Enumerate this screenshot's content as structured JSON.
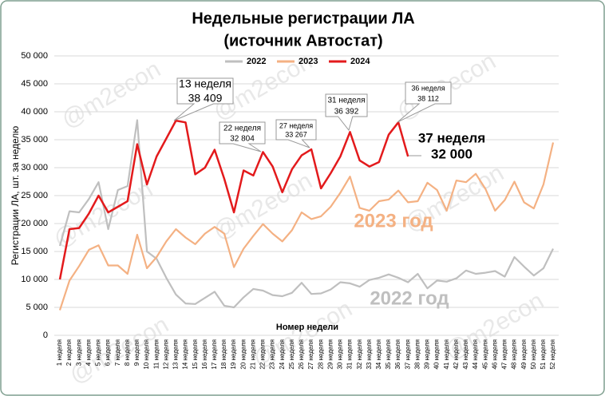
{
  "chart_data": {
    "type": "line",
    "title": [
      "Недельные регистрации ЛА",
      "(источник Автостат)"
    ],
    "y_label": "Регистрации ЛА, шт. за неделю",
    "x_label": "Номер недели",
    "watermark": "@m2econ",
    "categories": [
      "1 неделя",
      "2 неделя",
      "3 неделя",
      "4 неделя",
      "5 неделя",
      "6 неделя",
      "7 неделя",
      "8 неделя",
      "9 неделя",
      "10 неделя",
      "11 неделя",
      "12 неделя",
      "13 неделя",
      "14 неделя",
      "15 неделя",
      "16 неделя",
      "17 неделя",
      "18 неделя",
      "19 неделя",
      "20 неделя",
      "21 неделя",
      "22 неделя",
      "23 неделя",
      "24 неделя",
      "25 неделя",
      "26 неделя",
      "27 неделя",
      "28 неделя",
      "29 неделя",
      "30 неделя",
      "31 неделя",
      "32 неделя",
      "33 неделя",
      "34 неделя",
      "35 неделя",
      "36 неделя",
      "37 неделя",
      "38 неделя",
      "39 неделя",
      "40 неделя",
      "41 неделя",
      "42 неделя",
      "43 неделя",
      "44 неделя",
      "45 неделя",
      "46 неделя",
      "47 неделя",
      "48 неделя",
      "49 неделя",
      "50 неделя",
      "51 неделя",
      "52 неделя"
    ],
    "series": [
      {
        "name": "2022",
        "color": "#bfbfbf",
        "values": [
          16000,
          22200,
          22000,
          24400,
          27400,
          19000,
          26000,
          26700,
          38500,
          15000,
          13700,
          10300,
          7300,
          5700,
          5600,
          6700,
          7800,
          5300,
          5000,
          6800,
          8300,
          8000,
          7200,
          7000,
          7600,
          9400,
          7400,
          7500,
          8200,
          9500,
          9300,
          8700,
          9900,
          10300,
          10900,
          10300,
          9500,
          11000,
          8400,
          9800,
          9600,
          10200,
          11600,
          11000,
          11200,
          11500,
          10500,
          14000,
          12300,
          10700,
          12000,
          15500
        ]
      },
      {
        "name": "2023",
        "color": "#f4b183",
        "values": [
          4500,
          9800,
          12400,
          15300,
          16100,
          12500,
          12500,
          11000,
          18000,
          12000,
          14000,
          16800,
          19000,
          17500,
          16300,
          18200,
          19400,
          18200,
          12200,
          15500,
          17800,
          19900,
          18200,
          16800,
          18800,
          22000,
          20800,
          21300,
          23000,
          25500,
          28400,
          22800,
          22300,
          24000,
          24300,
          25900,
          23800,
          24000,
          27300,
          26000,
          22300,
          27700,
          27400,
          28900,
          26200,
          22300,
          24200,
          27500,
          23800,
          22700,
          27000,
          34500
        ]
      },
      {
        "name": "2024",
        "color": "#e31a1c",
        "values": [
          10000,
          19000,
          19200,
          21800,
          25000,
          22000,
          23000,
          24000,
          34200,
          27000,
          32000,
          35200,
          38409,
          38100,
          28800,
          30000,
          33200,
          28000,
          22000,
          29500,
          28600,
          32804,
          30200,
          25600,
          29700,
          32200,
          33267,
          26300,
          29000,
          32000,
          36392,
          31300,
          30200,
          31000,
          35900,
          38112,
          32000,
          null,
          null,
          null,
          null,
          null,
          null,
          null,
          null,
          null,
          null,
          null,
          null,
          null,
          null,
          null
        ]
      }
    ],
    "annotations": [
      [
        "13 неделя",
        "38 409"
      ],
      [
        "22 неделя",
        "32 804"
      ],
      [
        "27 неделя",
        "33 267"
      ],
      [
        "31 неделя",
        "36 392"
      ],
      [
        "36 неделя",
        "38 112"
      ]
    ],
    "big_labels": [
      [
        "37 неделя",
        "32 000"
      ],
      [
        "2023 год"
      ],
      [
        "2022 год"
      ]
    ],
    "ylim": [
      0,
      50000
    ],
    "yticks": [
      0,
      {
        "value": 5000,
        "label": "5 000"
      },
      {
        "value": 10000,
        "label": "10 000"
      },
      {
        "value": 15000,
        "label": "15 000"
      },
      {
        "value": 20000,
        "label": "20 000"
      },
      {
        "value": 25000,
        "label": "25 000"
      },
      {
        "value": 30000,
        "label": "30 000"
      },
      {
        "value": 35000,
        "label": "35 000"
      },
      {
        "value": 40000,
        "label": "40 000"
      },
      {
        "value": 45000,
        "label": "45 000"
      },
      {
        "value": 50000,
        "label": "50 000"
      }
    ],
    "grid": true
  }
}
